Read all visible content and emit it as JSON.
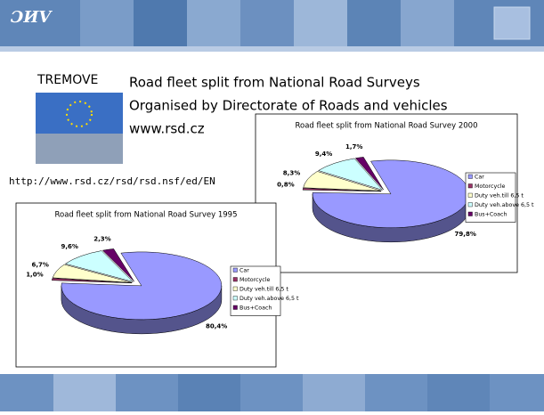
{
  "slide": {
    "logo": "ƆИV",
    "label": "TREMOVE",
    "lines": [
      "Road fleet split from National Road Surveys",
      "Organised by Directorate of Roads and vehicles",
      "www.rsd.cz"
    ],
    "url": "http://www.rsd.cz/rsd/rsd.nsf/ed/EN"
  },
  "chart_data": [
    {
      "type": "pie3d",
      "title": "Road fleet split from National Road Survey 2000",
      "categories": [
        "Car",
        "Motorcycle",
        "Duty veh.till 6,5 t",
        "Duty veh.above 6,5 t",
        "Bus+Coach"
      ],
      "values": [
        79.8,
        0.8,
        8.3,
        9.4,
        1.7
      ],
      "value_labels": [
        "79,8%",
        "0,8%",
        "8,3%",
        "9,4%",
        "1,7%"
      ],
      "colors": [
        "#9999ff",
        "#993366",
        "#ffffcc",
        "#ccffff",
        "#660066"
      ]
    },
    {
      "type": "pie3d",
      "title": "Road fleet split from National Road Survey 1995",
      "categories": [
        "Car",
        "Motorcycle",
        "Duty veh.till 6,5 t",
        "Duty veh.above 6,5 t",
        "Bus+Coach"
      ],
      "values": [
        80.4,
        1.0,
        6.7,
        9.6,
        2.3
      ],
      "value_labels": [
        "80,4%",
        "1,0%",
        "6,7%",
        "9,6%",
        "2,3%"
      ],
      "colors": [
        "#9999ff",
        "#993366",
        "#ffffcc",
        "#ccffff",
        "#660066"
      ]
    }
  ]
}
